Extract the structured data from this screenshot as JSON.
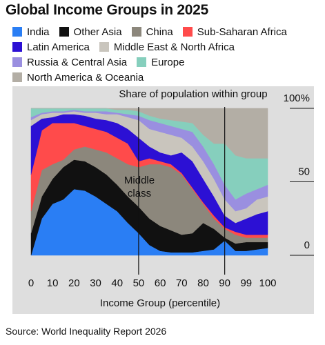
{
  "chart_data": {
    "type": "stacked_area",
    "title": "Global Income Groups in 2025",
    "annotation": "Share of population within group",
    "highlight_label": "Middle class",
    "xlabel": "Income Group (percentile)",
    "source": "Source: World Inequality Report 2026",
    "categories": [
      "0",
      null,
      "10",
      null,
      "20",
      null,
      "30",
      null,
      "40",
      null,
      "50",
      null,
      "60",
      null,
      "70",
      null,
      "80",
      null,
      "90",
      null,
      "99",
      null,
      "100"
    ],
    "vlines": [
      "50",
      "90"
    ],
    "ylim": [
      0,
      100
    ],
    "yticks": [
      0,
      50,
      {
        "value": 100,
        "label": "100%"
      }
    ],
    "series": [
      {
        "name": "India",
        "color": "#2a7ef4",
        "values": [
          0,
          25,
          35,
          38,
          45,
          44,
          40,
          35,
          30,
          22,
          15,
          7,
          3,
          2,
          2,
          2,
          3,
          4,
          10,
          3,
          3,
          4,
          5
        ]
      },
      {
        "name": "Other Asia",
        "color": "#111111",
        "values": [
          15,
          15,
          17,
          22,
          20,
          20,
          20,
          20,
          18,
          18,
          18,
          18,
          17,
          15,
          12,
          13,
          19,
          14,
          2,
          5,
          6,
          5,
          4
        ]
      },
      {
        "name": "China",
        "color": "#8c877c",
        "values": [
          15,
          18,
          10,
          5,
          7,
          10,
          12,
          15,
          18,
          22,
          27,
          37,
          42,
          43,
          41,
          30,
          13,
          7,
          6,
          6,
          3,
          3,
          3
        ]
      },
      {
        "name": "Sub-Saharan Africa",
        "color": "#ff4b4b",
        "values": [
          25,
          27,
          28,
          25,
          18,
          14,
          14,
          14,
          14,
          14,
          4,
          4,
          2,
          2,
          1,
          1,
          1,
          2,
          1,
          2,
          2,
          2,
          2
        ]
      },
      {
        "name": "Latin America",
        "color": "#2c10d4",
        "values": [
          33,
          8,
          4,
          6,
          6,
          7,
          7,
          8,
          10,
          10,
          16,
          8,
          6,
          6,
          14,
          18,
          16,
          13,
          8,
          6,
          11,
          14,
          16
        ]
      },
      {
        "name": "Middle East & North Africa",
        "color": "#c9c5bd",
        "values": [
          4,
          3,
          3,
          1,
          2,
          2,
          4,
          4,
          6,
          8,
          12,
          12,
          14,
          14,
          10,
          10,
          12,
          12,
          11,
          8,
          7,
          10,
          10
        ]
      },
      {
        "name": "Russia & Central Asia",
        "color": "#9a8fe0",
        "values": [
          2,
          1,
          1,
          1,
          1,
          1,
          1,
          2,
          1,
          2,
          3,
          6,
          6,
          6,
          6,
          10,
          10,
          10,
          10,
          8,
          10,
          7,
          8
        ]
      },
      {
        "name": "Europe",
        "color": "#86cfbd",
        "values": [
          6,
          3,
          2,
          2,
          1,
          2,
          2,
          2,
          2,
          3,
          3,
          3,
          3,
          4,
          5,
          6,
          8,
          14,
          28,
          30,
          24,
          21,
          18
        ]
      },
      {
        "name": "North America & Oceania",
        "color": "#b3aea5",
        "values": [
          0,
          0,
          0,
          0,
          0,
          0,
          0,
          0,
          1,
          1,
          2,
          5,
          7,
          8,
          9,
          10,
          18,
          24,
          24,
          32,
          34,
          34,
          34
        ]
      }
    ]
  }
}
